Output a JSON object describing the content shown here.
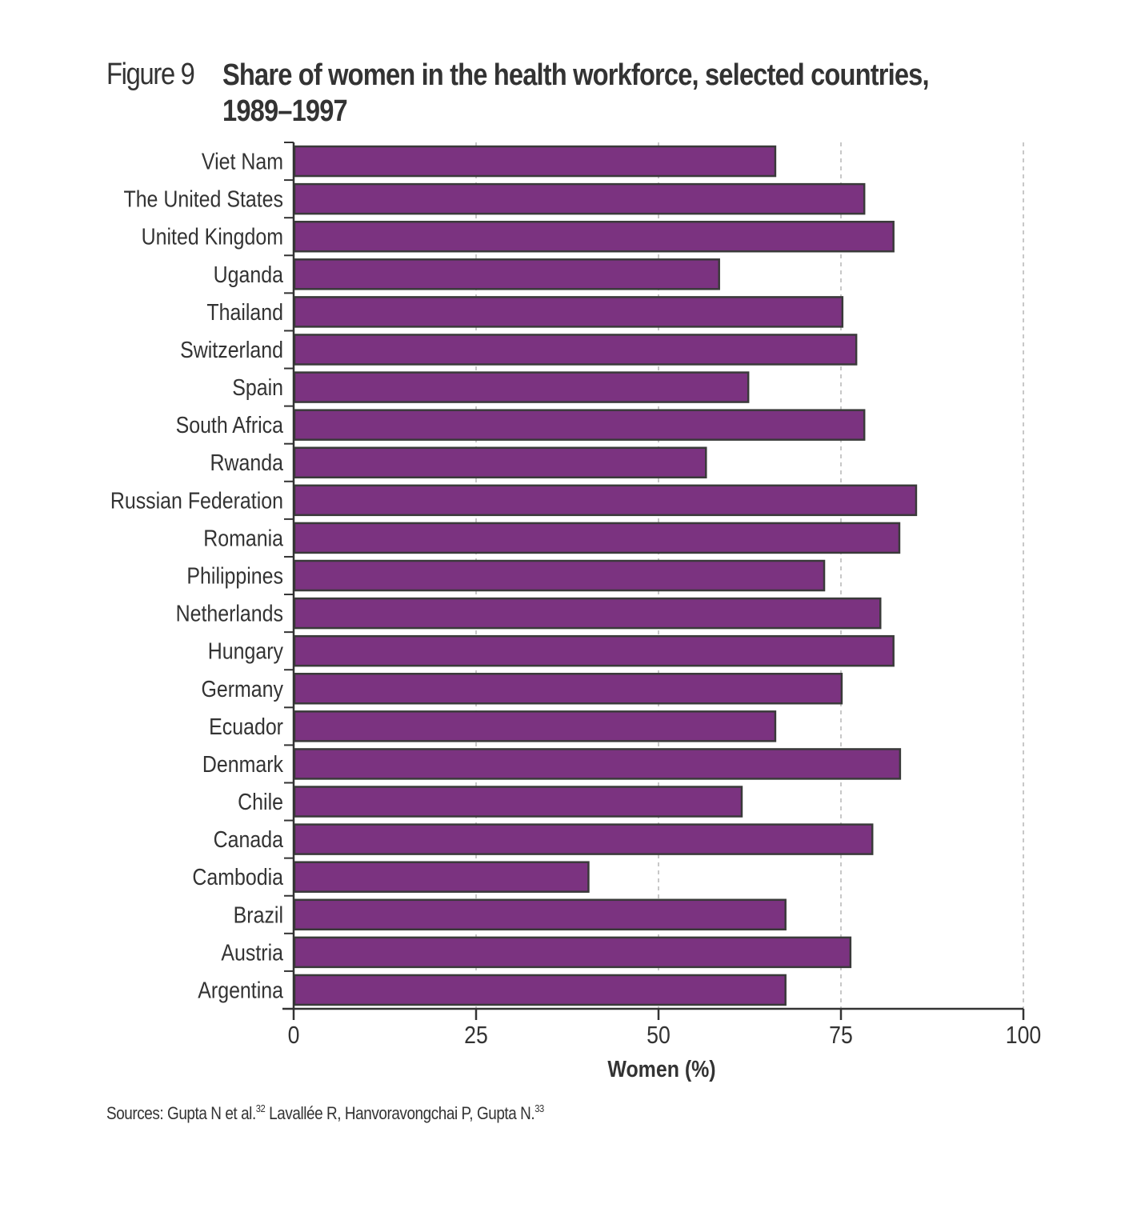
{
  "figure": {
    "number": "Figure 9",
    "title_line1": "Share of women in the health workforce, selected countries,",
    "title_line2": "1989–1997"
  },
  "footnote": {
    "part1": "Sources: Gupta N et al.",
    "ref1": "32",
    "part2": " Lavallée R, Hanvoravongchai P, Gupta N.",
    "ref2": "33"
  },
  "colors": {
    "bar_fill": "#7b3380",
    "bar_border": "#3a3a3a",
    "axis": "#333333",
    "grid": "#c8c8c8"
  },
  "chart_data": {
    "type": "bar",
    "orientation": "horizontal",
    "title": "Share of women in the health workforce, selected countries, 1989–1997",
    "xlabel": "Women (%)",
    "ylabel": "",
    "xlim": [
      0,
      100
    ],
    "xticks": [
      0,
      25,
      50,
      75,
      100
    ],
    "xtick_labels": [
      "0",
      "25",
      "50",
      "75",
      "100"
    ],
    "grid": "vertical dashed",
    "categories": [
      "Viet Nam",
      "The United States",
      "United Kingdom",
      "Uganda",
      "Thailand",
      "Switzerland",
      "Spain",
      "South Africa",
      "Rwanda",
      "Russian Federation",
      "Romania",
      "Philippines",
      "Netherlands",
      "Hungary",
      "Germany",
      "Ecuador",
      "Denmark",
      "Chile",
      "Canada",
      "Cambodia",
      "Brazil",
      "Austria",
      "Argentina"
    ],
    "values": [
      66.0,
      78.2,
      82.2,
      58.3,
      75.2,
      77.1,
      62.3,
      78.2,
      56.5,
      85.3,
      83.0,
      72.7,
      80.4,
      82.2,
      75.1,
      66.0,
      83.1,
      61.4,
      79.3,
      40.4,
      67.4,
      76.3,
      67.4
    ]
  }
}
